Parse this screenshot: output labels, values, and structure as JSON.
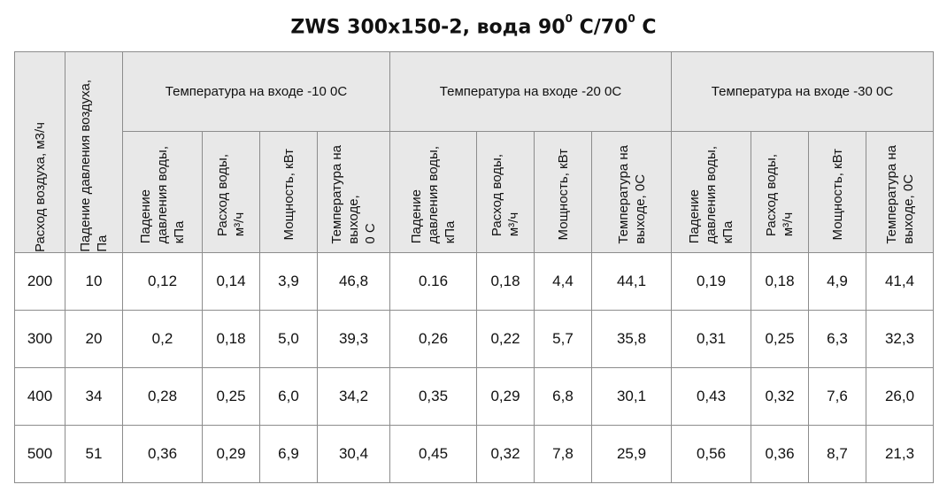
{
  "title": {
    "prefix": "ZWS 300x150-2, вода 90",
    "sup1": "0",
    "mid": " С/70",
    "sup2": "0",
    "suffix": " С"
  },
  "headers": {
    "air_flow": "Расход воздуха, м3/ч",
    "air_pressure": "Падение давления воздуха,\nПа",
    "groups": [
      "Температура на входе -10 0С",
      "Температура на входе -20 0С",
      "Температура на входе -30 0С"
    ],
    "sub": [
      [
        "Падение\nдавления воды,\nкПа",
        "Расход воды,\nм³/ч",
        "Мощность, кВт",
        "Температура на\nвыходе,\n0 С"
      ],
      [
        "Падение\nдавления воды,\nкПа",
        "Расход воды,\nм³/ч",
        "Мощность, кВт",
        "Температура на\nвыходе, 0С"
      ],
      [
        "Падение\nдавления воды,\nкПа",
        "Расход воды,\nм³/ч",
        "Мощность, кВт",
        "Температура на\nвыходе, 0С"
      ]
    ]
  },
  "rows": [
    [
      "200",
      "10",
      "0,12",
      "0,14",
      "3,9",
      "46,8",
      "0.16",
      "0,18",
      "4,4",
      "44,1",
      "0,19",
      "0,18",
      "4,9",
      "41,4"
    ],
    [
      "300",
      "20",
      "0,2",
      "0,18",
      "5,0",
      "39,3",
      "0,26",
      "0,22",
      "5,7",
      "35,8",
      "0,31",
      "0,25",
      "6,3",
      "32,3"
    ],
    [
      "400",
      "34",
      "0,28",
      "0,25",
      "6,0",
      "34,2",
      "0,35",
      "0,29",
      "6,8",
      "30,1",
      "0,43",
      "0,32",
      "7,6",
      "26,0"
    ],
    [
      "500",
      "51",
      "0,36",
      "0,29",
      "6,9",
      "30,4",
      "0,45",
      "0,32",
      "7,8",
      "25,9",
      "0,56",
      "0,36",
      "8,7",
      "21,3"
    ]
  ]
}
